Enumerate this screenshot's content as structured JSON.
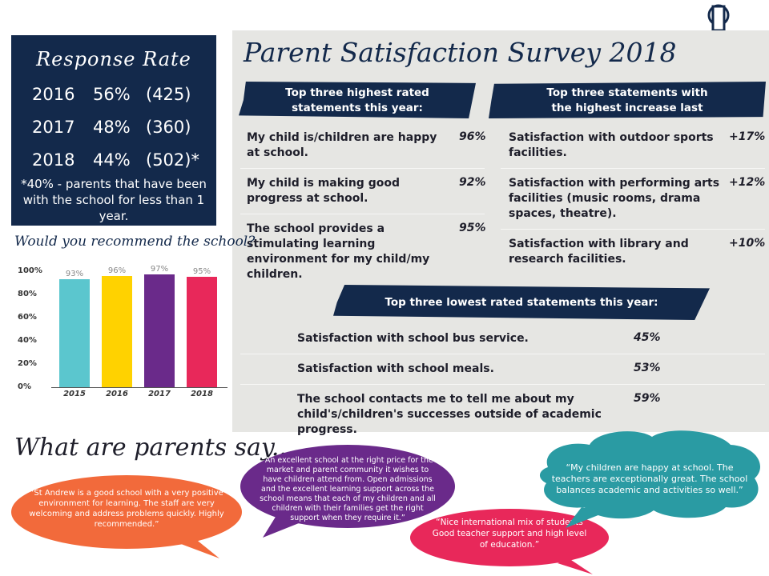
{
  "response_rate": {
    "title": "Response Rate",
    "rows": [
      {
        "year": "2016",
        "pct": "56%",
        "count": "(425)"
      },
      {
        "year": "2017",
        "pct": "48%",
        "count": "(360)"
      },
      {
        "year": "2018",
        "pct": "44%",
        "count": "(502)*"
      }
    ],
    "note": "*40% - parents that have been with the school for less than 1 year."
  },
  "survey": {
    "title": "Parent Satisfaction Survey 2018",
    "highest": {
      "heading": "Top three highest rated statements this year:",
      "items": [
        {
          "text": "My child is/children are happy at school.",
          "value": "96%"
        },
        {
          "text": "My child is making good progress at school.",
          "value": "92%"
        },
        {
          "text": "The school provides a stimulating learning environment for my child/my children.",
          "value": "95%"
        }
      ]
    },
    "increase": {
      "heading": "Top three statements with the highest increase last year:",
      "items": [
        {
          "text": "Satisfaction with outdoor sports facilities.",
          "value": "+17%"
        },
        {
          "text": "Satisfaction with performing arts facilities (music rooms, drama spaces, theatre).",
          "value": "+12%"
        },
        {
          "text": "Satisfaction with library and research facilities.",
          "value": "+10%"
        }
      ]
    },
    "lowest": {
      "heading": "Top three lowest rated statements this year:",
      "items": [
        {
          "text": "Satisfaction with school bus service.",
          "value": "45%"
        },
        {
          "text": "Satisfaction with school meals.",
          "value": "53%"
        },
        {
          "text": "The school contacts me to tell me about my child's/children's successes outside of academic progress.",
          "value": "59%"
        }
      ]
    }
  },
  "recommend": {
    "title": "Would you recommend the school?",
    "yticks": [
      "100%",
      "80%",
      "60%",
      "40%",
      "20%",
      "0%"
    ]
  },
  "chart_data": {
    "type": "bar",
    "title": "Would you recommend the school?",
    "categories": [
      "2015",
      "2016",
      "2017",
      "2018"
    ],
    "values": [
      93,
      96,
      97,
      95
    ],
    "value_labels": [
      "93%",
      "96%",
      "97%",
      "95%"
    ],
    "ylim": [
      0,
      100
    ],
    "colors": [
      "#5bc6ce",
      "#ffd200",
      "#6a2a8a",
      "#e8285a"
    ]
  },
  "parents_say": {
    "title": "What are parents say...",
    "quotes": [
      {
        "text": "“St Andrew is a good school with a very positive environment for learning. The staff are very welcoming and address problems quickly. Highly recommended.”",
        "color": "#f26a3b"
      },
      {
        "text": "“An excellent school at the right price for the market and parent community it wishes to have children attend from. Open admissions and the excellent learning support across the school means that each of my children and all children with their families get the right support when they require it.”",
        "color": "#6a2a8a"
      },
      {
        "text": "“Nice international mix of students Good teacher support and high level of education.”",
        "color": "#e8285a"
      },
      {
        "text": "“My children are happy at school. The teachers are exceptionally great. The school balances academic and activities so well.”",
        "color": "#2a9ba3"
      }
    ]
  },
  "icons": {
    "clip": "binder-clip-icon"
  }
}
